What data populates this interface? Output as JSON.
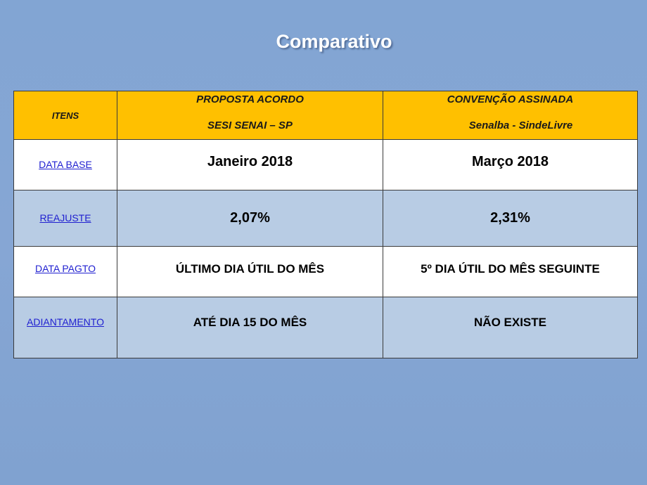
{
  "title": "Comparativo",
  "table": {
    "header": {
      "col0": "ITENS",
      "col1_line1": "PROPOSTA ACORDO",
      "col1_line2": "SESI  SENAI – SP",
      "col2_line1": "CONVENÇÃO ASSINADA",
      "col2_line2": "Senalba - SindeLivre"
    },
    "rows": [
      {
        "label": "DATA BASE",
        "col1": "Janeiro 2018",
        "col2": "Março 2018"
      },
      {
        "label": "REAJUSTE",
        "col1": "2,07%",
        "col2": "2,31%"
      },
      {
        "label": "DATA  PAGTO",
        "col1": "ÚLTIMO  DIA ÚTIL DO MÊS",
        "col2": "5º DIA ÚTIL DO MÊS SEGUINTE"
      },
      {
        "label": "ADIANTAMENTO",
        "col1": "ATÉ DIA 15 DO MÊS",
        "col2": "NÃO EXISTE"
      }
    ]
  },
  "colors": {
    "background": "#84a5d3",
    "header": "#ffc000",
    "row_alt": "#b8cce4",
    "link": "#1f1fd0"
  }
}
